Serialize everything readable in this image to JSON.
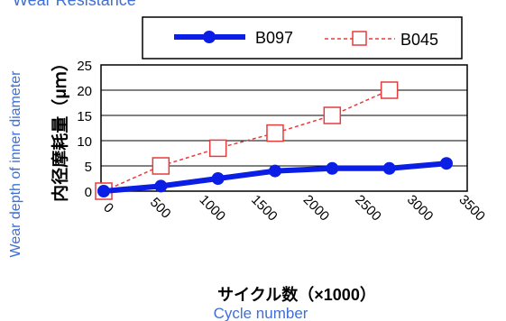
{
  "header": {
    "title": "Wear Resistance"
  },
  "axes": {
    "y_label_en": "Wear  depth of inner  diameter",
    "y_label_jp": "内径摩耗量（μｍ）",
    "x_label_jp": "サイクル数（×1000）",
    "x_label_en": "Cycle number"
  },
  "colors": {
    "series1": "#0a1ee6",
    "series2": "#e63c3c",
    "label_blue": "#3f6fd6"
  },
  "chart_data": {
    "type": "line",
    "title": "Wear Resistance",
    "xlabel": "サイクル数（×1000） Cycle number",
    "ylabel": "Wear  depth of inner  diameter 内径摩耗量（μｍ）",
    "xlim": [
      0,
      3500
    ],
    "ylim": [
      0,
      25
    ],
    "x_ticks": [
      0,
      500,
      1000,
      1500,
      2000,
      2500,
      3000,
      3500
    ],
    "y_ticks": [
      0,
      5,
      10,
      15,
      20,
      25
    ],
    "grid": "horizontal",
    "legend_position": "top",
    "series": [
      {
        "name": "B097",
        "color": "#0a1ee6",
        "marker": "filled-circle",
        "line": "solid-thick",
        "x": [
          0,
          550,
          1100,
          1650,
          2200,
          2750,
          3300
        ],
        "y": [
          0,
          1,
          2.5,
          4,
          4.5,
          4.5,
          5.5
        ]
      },
      {
        "name": "B045",
        "color": "#e63c3c",
        "marker": "open-square",
        "line": "dashed",
        "x": [
          0,
          550,
          1100,
          1650,
          2200,
          2750
        ],
        "y": [
          0,
          5,
          8.5,
          11.5,
          15,
          20
        ]
      }
    ]
  }
}
